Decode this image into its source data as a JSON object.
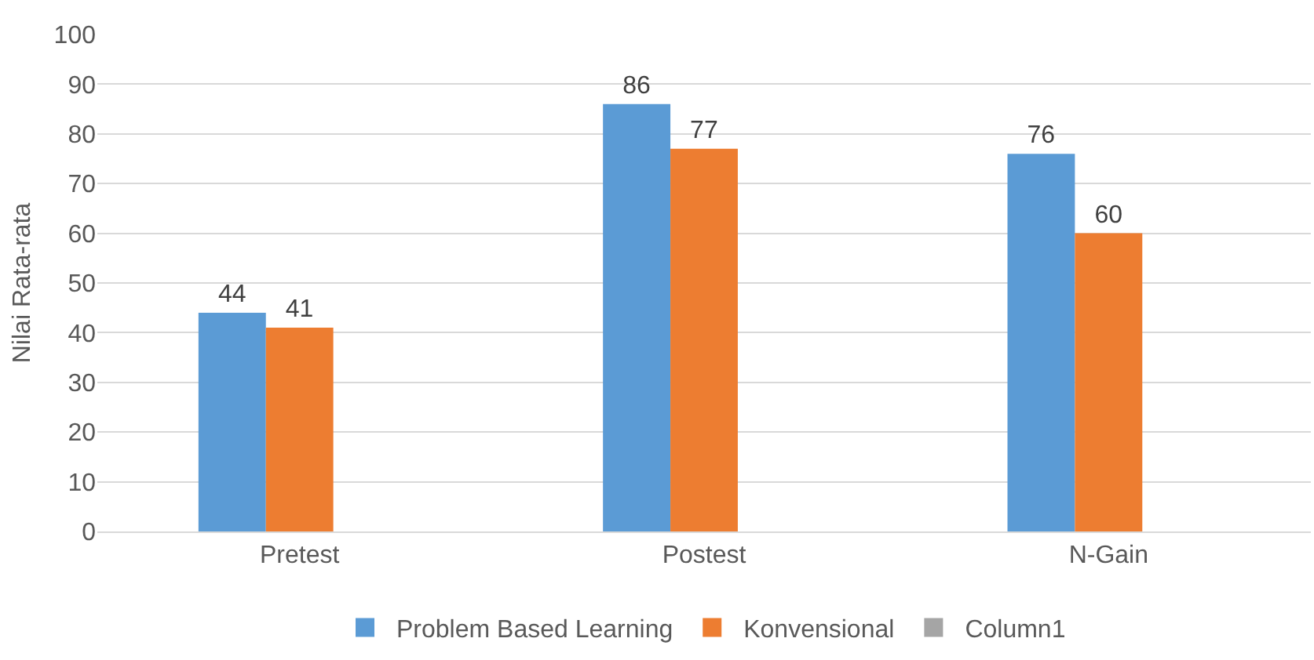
{
  "chart_data": {
    "type": "bar",
    "ylabel": "Nilai Rata-rata",
    "categories": [
      "Pretest",
      "Postest",
      "N-Gain"
    ],
    "series": [
      {
        "name": "Problem Based Learning",
        "color": "#5b9bd5",
        "values": [
          44,
          86,
          76
        ]
      },
      {
        "name": "Konvensional",
        "color": "#ed7d31",
        "values": [
          41,
          77,
          60
        ]
      },
      {
        "name": "Column1",
        "color": "#a5a5a5",
        "values": [
          null,
          null,
          null
        ]
      }
    ],
    "ylim": [
      0,
      100
    ],
    "yticks": [
      0,
      10,
      20,
      30,
      40,
      50,
      60,
      70,
      80,
      90,
      100
    ],
    "grid": "y",
    "legend": "bottom",
    "data_labels": true
  }
}
